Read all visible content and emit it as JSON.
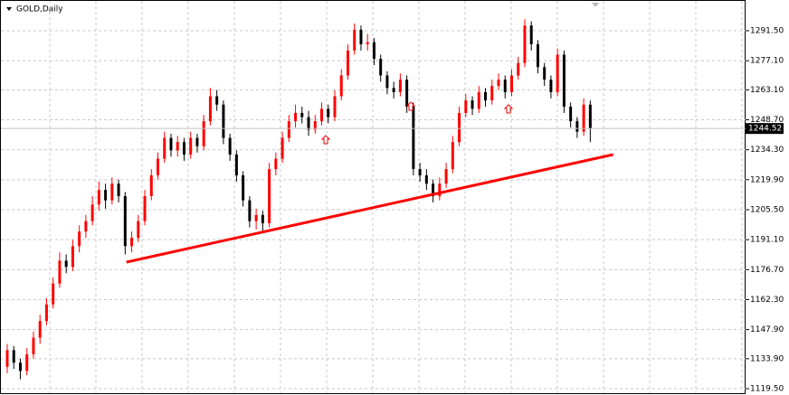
{
  "chart_data": {
    "type": "candlestick",
    "title": "GOLD,Daily",
    "up_color": "#ff0000",
    "down_color": "#000000",
    "grid": true,
    "ylim": [
      1118.2,
      1305.4
    ],
    "yticks": [
      {
        "value": 1119.5,
        "label": "1119.50"
      },
      {
        "value": 1133.9,
        "label": "1133.90"
      },
      {
        "value": 1147.9,
        "label": "1147.90"
      },
      {
        "value": 1162.3,
        "label": "1162.30"
      },
      {
        "value": 1176.7,
        "label": "1176.70"
      },
      {
        "value": 1191.1,
        "label": "1191.10"
      },
      {
        "value": 1205.5,
        "label": "1205.50"
      },
      {
        "value": 1219.9,
        "label": "1219.90"
      },
      {
        "value": 1234.3,
        "label": "1234.30"
      },
      {
        "value": 1248.7,
        "label": "1248.70"
      },
      {
        "value": 1263.1,
        "label": "1263.10"
      },
      {
        "value": 1277.1,
        "label": "1277.10"
      },
      {
        "value": 1291.5,
        "label": "1291.50"
      }
    ],
    "trendline": {
      "color": "#ff0000",
      "points": [
        {
          "x": 18.2,
          "y": 1180.3
        },
        {
          "x": 92.5,
          "y": 1232.0
        }
      ]
    },
    "ohlc": [
      [
        1130,
        1141,
        1127,
        1138
      ],
      [
        1138,
        1140,
        1129,
        1132
      ],
      [
        1132,
        1134,
        1124,
        1128
      ],
      [
        1128,
        1139,
        1126,
        1136
      ],
      [
        1136,
        1147,
        1134,
        1144
      ],
      [
        1144,
        1155,
        1141,
        1152
      ],
      [
        1152,
        1163,
        1150,
        1160
      ],
      [
        1160,
        1173,
        1158,
        1170
      ],
      [
        1170,
        1185,
        1168,
        1181
      ],
      [
        1181,
        1184,
        1175,
        1178
      ],
      [
        1178,
        1191,
        1176,
        1188
      ],
      [
        1188,
        1198,
        1185,
        1195
      ],
      [
        1195,
        1203,
        1192,
        1200
      ],
      [
        1200,
        1212,
        1198,
        1208
      ],
      [
        1208,
        1219,
        1205,
        1215
      ],
      [
        1215,
        1218,
        1206,
        1210
      ],
      [
        1210,
        1221,
        1208,
        1218
      ],
      [
        1218,
        1220,
        1209,
        1212
      ],
      [
        1212,
        1214,
        1184,
        1188
      ],
      [
        1188,
        1195,
        1185,
        1192
      ],
      [
        1192,
        1203,
        1190,
        1200
      ],
      [
        1200,
        1215,
        1198,
        1212
      ],
      [
        1212,
        1225,
        1210,
        1222
      ],
      [
        1222,
        1233,
        1220,
        1230
      ],
      [
        1230,
        1243,
        1228,
        1240
      ],
      [
        1240,
        1242,
        1231,
        1234
      ],
      [
        1234,
        1241,
        1231,
        1238
      ],
      [
        1238,
        1240,
        1229,
        1232
      ],
      [
        1232,
        1243,
        1230,
        1240
      ],
      [
        1240,
        1242,
        1233,
        1236
      ],
      [
        1236,
        1251,
        1234,
        1248
      ],
      [
        1248,
        1264,
        1246,
        1260
      ],
      [
        1260,
        1263,
        1253,
        1256
      ],
      [
        1256,
        1258,
        1237,
        1240
      ],
      [
        1240,
        1242,
        1229,
        1232
      ],
      [
        1232,
        1234,
        1219,
        1222
      ],
      [
        1222,
        1224,
        1207,
        1210
      ],
      [
        1210,
        1212,
        1197,
        1200
      ],
      [
        1200,
        1206,
        1196,
        1203
      ],
      [
        1203,
        1205,
        1195,
        1199
      ],
      [
        1199,
        1228,
        1197,
        1225
      ],
      [
        1225,
        1233,
        1222,
        1230
      ],
      [
        1230,
        1243,
        1228,
        1240
      ],
      [
        1240,
        1251,
        1238,
        1248
      ],
      [
        1248,
        1256,
        1245,
        1252
      ],
      [
        1252,
        1255,
        1247,
        1250
      ],
      [
        1250,
        1253,
        1241,
        1244
      ],
      [
        1244,
        1251,
        1242,
        1248
      ],
      [
        1248,
        1257,
        1246,
        1254
      ],
      [
        1254,
        1256,
        1247,
        1250
      ],
      [
        1250,
        1263,
        1248,
        1260
      ],
      [
        1260,
        1273,
        1258,
        1270
      ],
      [
        1270,
        1285,
        1268,
        1282
      ],
      [
        1282,
        1295,
        1280,
        1292
      ],
      [
        1292,
        1294,
        1282,
        1285
      ],
      [
        1285,
        1290,
        1282,
        1286
      ],
      [
        1286,
        1288,
        1275,
        1278
      ],
      [
        1278,
        1280,
        1267,
        1270
      ],
      [
        1270,
        1272,
        1261,
        1264
      ],
      [
        1264,
        1267,
        1259,
        1262
      ],
      [
        1262,
        1271,
        1260,
        1268
      ],
      [
        1268,
        1270,
        1252,
        1255
      ],
      [
        1255,
        1257,
        1222,
        1225
      ],
      [
        1225,
        1228,
        1219,
        1222
      ],
      [
        1222,
        1225,
        1215,
        1218
      ],
      [
        1218,
        1220,
        1209,
        1212
      ],
      [
        1212,
        1221,
        1210,
        1218
      ],
      [
        1218,
        1228,
        1216,
        1225
      ],
      [
        1225,
        1241,
        1223,
        1238
      ],
      [
        1238,
        1255,
        1236,
        1252
      ],
      [
        1252,
        1261,
        1250,
        1258
      ],
      [
        1258,
        1260,
        1251,
        1254
      ],
      [
        1254,
        1265,
        1252,
        1262
      ],
      [
        1262,
        1264,
        1255,
        1258
      ],
      [
        1258,
        1268,
        1256,
        1265
      ],
      [
        1265,
        1271,
        1263,
        1268
      ],
      [
        1268,
        1270,
        1259,
        1262
      ],
      [
        1262,
        1273,
        1260,
        1270
      ],
      [
        1270,
        1279,
        1268,
        1276
      ],
      [
        1276,
        1297,
        1274,
        1294
      ],
      [
        1294,
        1296,
        1282,
        1285
      ],
      [
        1285,
        1287,
        1271,
        1274
      ],
      [
        1274,
        1276,
        1265,
        1268
      ],
      [
        1268,
        1270,
        1259,
        1262
      ],
      [
        1262,
        1283,
        1260,
        1280
      ],
      [
        1280,
        1282,
        1252,
        1255
      ],
      [
        1255,
        1257,
        1245,
        1248
      ],
      [
        1248,
        1250,
        1240,
        1243
      ],
      [
        1243,
        1259,
        1241,
        1256
      ],
      [
        1256,
        1258,
        1238,
        1244.52
      ]
    ]
  }
}
